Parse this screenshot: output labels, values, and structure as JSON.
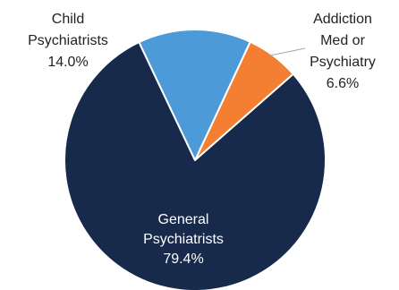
{
  "chart_data": {
    "type": "pie",
    "start_angle_deg": 25,
    "direction": "clockwise",
    "slices": [
      {
        "name": "Addiction Med or Psychiatry",
        "label_lines": [
          "Addiction",
          "Med or",
          "Psychiatry"
        ],
        "value": 6.6,
        "value_label": "6.6%",
        "color": "#F47F33",
        "label_color": "#222222"
      },
      {
        "name": "General Psychiatrists",
        "label_lines": [
          "General",
          "Psychiatrists"
        ],
        "value": 79.4,
        "value_label": "79.4%",
        "color": "#172A4C",
        "label_color": "#FFFFFF"
      },
      {
        "name": "Child Psychiatrists",
        "label_lines": [
          "Child",
          "Psychiatrists"
        ],
        "value": 14.0,
        "value_label": "14.0%",
        "color": "#4C9BD8",
        "label_color": "#222222"
      }
    ],
    "slice_border_color": "#FFFFFF",
    "leader_line_color": "#A6A6A6"
  }
}
